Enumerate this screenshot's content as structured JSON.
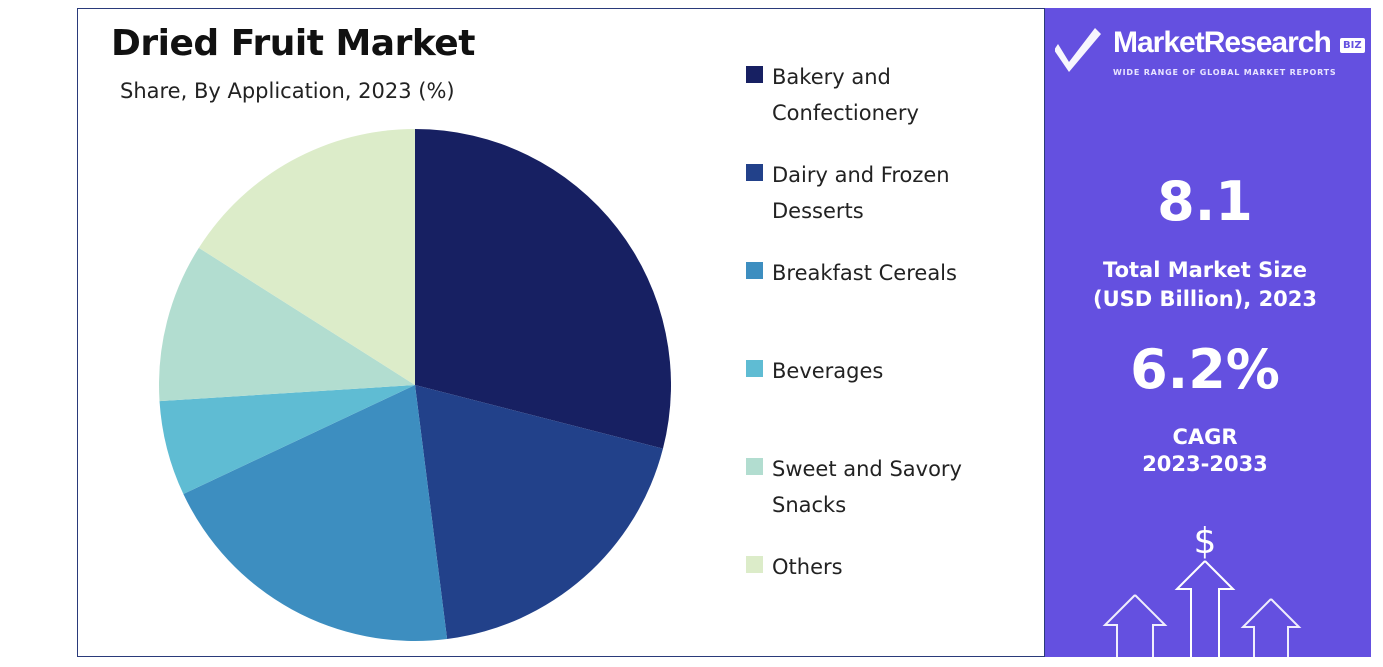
{
  "chart_data": {
    "type": "pie",
    "title": "Dried Fruit Market",
    "subtitle": "Share, By Application, 2023 (%)",
    "categories": [
      "Bakery and Confectionery",
      "Dairy and Frozen Desserts",
      "Breakfast Cereals",
      "Beverages",
      "Sweet and Savory Snacks",
      "Others"
    ],
    "values": [
      29,
      19,
      20,
      6,
      10,
      16
    ],
    "colors": [
      "#172062",
      "#22418a",
      "#3d8ec0",
      "#5fbcd3",
      "#b2ddd0",
      "#dcecc9"
    ],
    "start_angle": "12 o'clock",
    "direction": "clockwise",
    "legend_position": "right"
  },
  "side_panel": {
    "brand_name": "MarketResearch",
    "brand_badge": "BIZ",
    "brand_tagline": "WIDE RANGE OF GLOBAL MARKET REPORTS",
    "market_size_value": "8.1",
    "market_size_label_line1": "Total Market Size",
    "market_size_label_line2": "(USD Billion), 2023",
    "cagr_value": "6.2%",
    "cagr_label_line1": "CAGR",
    "cagr_label_line2": "2023-2033",
    "currency_symbol": "$",
    "accent_color": "#6450e0",
    "icons": [
      "brand-check-logo",
      "dollar-growth-arrows-icon"
    ]
  }
}
